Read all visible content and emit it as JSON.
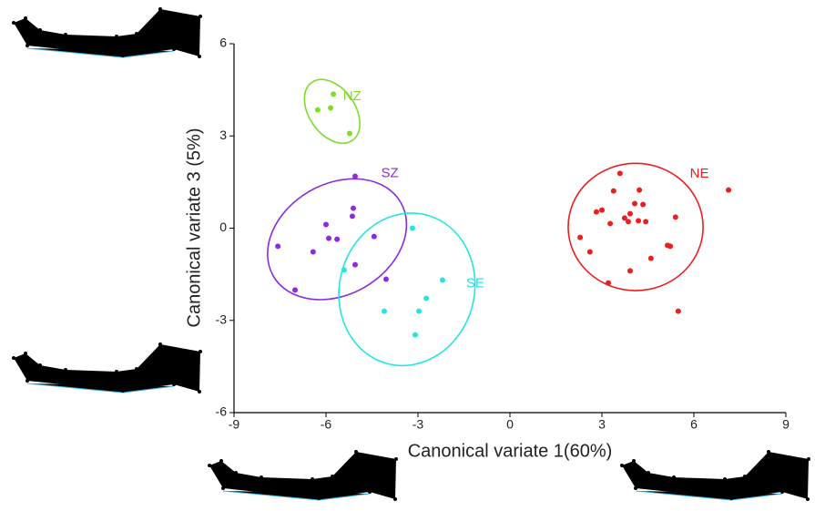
{
  "chart_data": {
    "type": "scatter",
    "xlabel": "Canonical variate 1(60%)",
    "ylabel": "Canonical variate 3 (5%)",
    "xlim": [
      -9,
      9
    ],
    "xticks": [
      -9,
      -6,
      -3,
      0,
      3,
      6,
      9
    ],
    "ylim": [
      -6,
      6
    ],
    "yticks": [
      -6,
      -3,
      0,
      3,
      6
    ],
    "series": [
      {
        "name": "NZ",
        "color": "#7fdd2a",
        "x": [
          -5.76,
          -6.27,
          -5.85,
          -5.23
        ],
        "y": [
          4.36,
          3.85,
          3.91,
          3.08
        ],
        "ellipse": {
          "cx": -5.8,
          "cy": 3.8,
          "rx": 0.75,
          "ry": 1.15,
          "angle": -35
        }
      },
      {
        "name": "SZ",
        "color": "#8a2be2",
        "x": [
          -5.05,
          -5.11,
          -5.14,
          -6.0,
          -5.91,
          -5.64,
          -6.42,
          -7.57,
          -4.43,
          -5.05,
          -7.01,
          -4.04
        ],
        "y": [
          1.69,
          0.65,
          0.39,
          0.12,
          -0.33,
          -0.36,
          -0.77,
          -0.59,
          -0.27,
          -1.19,
          -2.01,
          -1.66
        ],
        "ellipse": {
          "cx": -5.64,
          "cy": -0.36,
          "rx": 2.4,
          "ry": 1.8,
          "angle": -30
        }
      },
      {
        "name": "SE",
        "color": "#22e5e5",
        "x": [
          -3.18,
          -5.41,
          -2.2,
          -2.73,
          -4.1,
          -2.97,
          -3.09
        ],
        "y": [
          0,
          -1.36,
          -1.69,
          -2.28,
          -2.7,
          -2.7,
          -3.47
        ],
        "ellipse": {
          "cx": -3.36,
          "cy": -1.99,
          "rx": 2.2,
          "ry": 2.5,
          "angle": 15
        }
      },
      {
        "name": "NE",
        "color": "#e82020",
        "x": [
          3.59,
          3.38,
          4.22,
          7.13,
          4.07,
          4.34,
          2.82,
          3.0,
          3.92,
          3.27,
          3.86,
          4.19,
          4.43,
          5.4,
          2.29,
          2.61,
          5.14,
          5.23,
          4.6,
          3.92,
          3.21,
          5.49,
          3.74
        ],
        "y": [
          1.78,
          1.21,
          1.24,
          1.24,
          0.8,
          0.77,
          0.53,
          0.59,
          0.47,
          0.15,
          0.21,
          0.24,
          0.21,
          0.36,
          -0.3,
          -0.77,
          -0.56,
          -0.59,
          -0.98,
          -1.39,
          -1.78,
          -2.7,
          0.33
        ],
        "ellipse": {
          "cx": 4.1,
          "cy": 0.04,
          "rx": 2.2,
          "ry": 2.07,
          "angle": 0
        }
      }
    ]
  }
}
